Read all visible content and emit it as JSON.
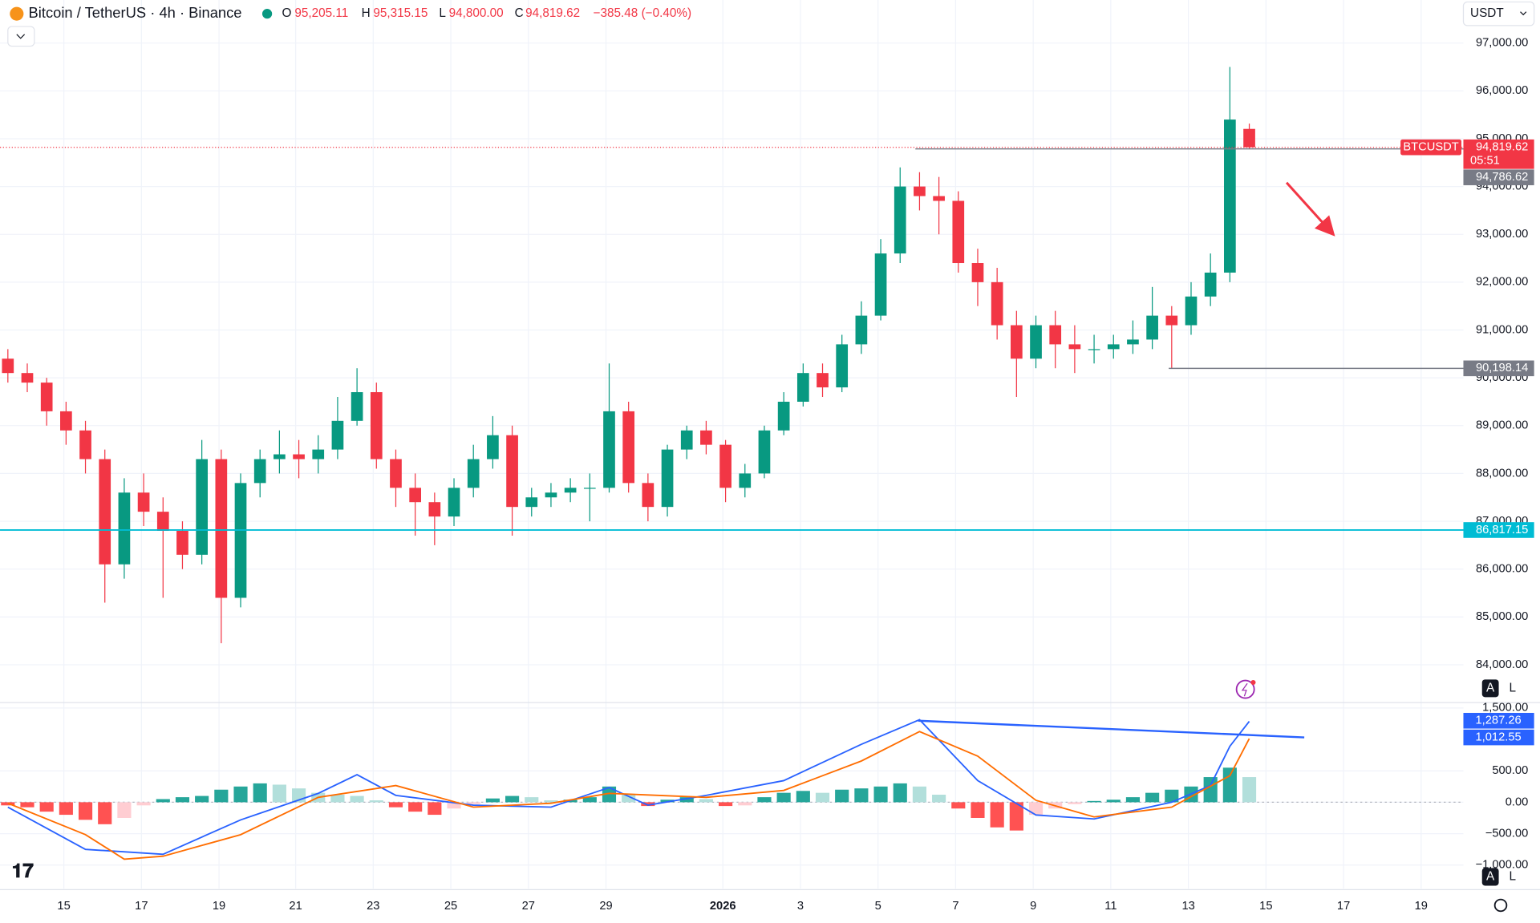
{
  "header": {
    "symbol": "Bitcoin / TetherUS · 4h · Binance",
    "o_key": "O",
    "o": "95,205.11",
    "h_key": "H",
    "h": "95,315.15",
    "l_key": "L",
    "l": "94,800.00",
    "c_key": "C",
    "c": "94,819.62",
    "change": "−385.48 (−0.40%)",
    "currency": "USDT",
    "scale_auto": "A",
    "scale_log": "L"
  },
  "chart_data": {
    "type": "candlestick",
    "up_color": "#089981",
    "down_color": "#f23645",
    "candles": [
      [
        90400,
        90600,
        89900,
        90100
      ],
      [
        90100,
        90300,
        89700,
        89900
      ],
      [
        89900,
        90000,
        89000,
        89300
      ],
      [
        89300,
        89500,
        88600,
        88900
      ],
      [
        88900,
        89100,
        88000,
        88300
      ],
      [
        88300,
        88500,
        85300,
        86100
      ],
      [
        86100,
        87900,
        85800,
        87600
      ],
      [
        87600,
        88000,
        86900,
        87200
      ],
      [
        87200,
        87500,
        85400,
        86800
      ],
      [
        86800,
        87000,
        86000,
        86300
      ],
      [
        86300,
        88700,
        86100,
        88300
      ],
      [
        88300,
        88500,
        84450,
        85400
      ],
      [
        85400,
        88000,
        85200,
        87800
      ],
      [
        87800,
        88500,
        87500,
        88300
      ],
      [
        88300,
        88900,
        88000,
        88400
      ],
      [
        88400,
        88700,
        87900,
        88300
      ],
      [
        88300,
        88800,
        88000,
        88500
      ],
      [
        88500,
        89600,
        88300,
        89100
      ],
      [
        89100,
        90200,
        89000,
        89700
      ],
      [
        89700,
        89900,
        88100,
        88300
      ],
      [
        88300,
        88500,
        87300,
        87700
      ],
      [
        87700,
        88000,
        86700,
        87400
      ],
      [
        87400,
        87600,
        86500,
        87100
      ],
      [
        87100,
        87900,
        86900,
        87700
      ],
      [
        87700,
        88600,
        87500,
        88300
      ],
      [
        88300,
        89200,
        88100,
        88800
      ],
      [
        88800,
        89000,
        86700,
        87300
      ],
      [
        87300,
        87700,
        87100,
        87500
      ],
      [
        87500,
        87800,
        87300,
        87600
      ],
      [
        87600,
        87900,
        87400,
        87700
      ],
      [
        87700,
        88000,
        87000,
        87700
      ],
      [
        87700,
        90300,
        87600,
        89300
      ],
      [
        89300,
        89500,
        87600,
        87800
      ],
      [
        87800,
        88000,
        87000,
        87300
      ],
      [
        87300,
        88600,
        87100,
        88500
      ],
      [
        88500,
        89000,
        88300,
        88900
      ],
      [
        88900,
        89100,
        88400,
        88600
      ],
      [
        88600,
        88700,
        87400,
        87700
      ],
      [
        87700,
        88200,
        87500,
        88000
      ],
      [
        88000,
        89000,
        87900,
        88900
      ],
      [
        88900,
        89700,
        88800,
        89500
      ],
      [
        89500,
        90300,
        89400,
        90100
      ],
      [
        90100,
        90300,
        89600,
        89800
      ],
      [
        89800,
        90900,
        89700,
        90700
      ],
      [
        90700,
        91600,
        90500,
        91300
      ],
      [
        91300,
        92900,
        91200,
        92600
      ],
      [
        92600,
        94400,
        92400,
        94000
      ],
      [
        94000,
        94300,
        93500,
        93800
      ],
      [
        93800,
        94200,
        93000,
        93700
      ],
      [
        93700,
        93900,
        92200,
        92400
      ],
      [
        92400,
        92700,
        91500,
        92000
      ],
      [
        92000,
        92300,
        90800,
        91100
      ],
      [
        91100,
        91400,
        89600,
        90400
      ],
      [
        90400,
        91300,
        90200,
        91100
      ],
      [
        91100,
        91400,
        90200,
        90700
      ],
      [
        90700,
        91100,
        90100,
        90600
      ],
      [
        90600,
        90900,
        90300,
        90600
      ],
      [
        90600,
        90900,
        90400,
        90700
      ],
      [
        90700,
        91200,
        90500,
        90800
      ],
      [
        90800,
        91900,
        90600,
        91300
      ],
      [
        91300,
        91500,
        90198.14,
        91100
      ],
      [
        91100,
        92000,
        90900,
        91700
      ],
      [
        91700,
        92600,
        91500,
        92200
      ],
      [
        92200,
        96500,
        92000,
        95400
      ],
      [
        95205.11,
        95315.15,
        94800,
        94819.62
      ]
    ],
    "ylim": [
      83220,
      97900
    ],
    "yticks": [
      {
        "value": 84000,
        "label": "84,000.00"
      },
      {
        "value": 85000,
        "label": "85,000.00"
      },
      {
        "value": 86000,
        "label": "86,000.00"
      },
      {
        "value": 87000,
        "label": "87,000.00"
      },
      {
        "value": 88000,
        "label": "88,000.00"
      },
      {
        "value": 89000,
        "label": "89,000.00"
      },
      {
        "value": 90000,
        "label": "90,000.00"
      },
      {
        "value": 91000,
        "label": "91,000.00"
      },
      {
        "value": 92000,
        "label": "92,000.00"
      },
      {
        "value": 93000,
        "label": "93,000.00"
      },
      {
        "value": 94000,
        "label": "94,000.00"
      },
      {
        "value": 95000,
        "label": "95,000.00"
      },
      {
        "value": 96000,
        "label": "96,000.00"
      },
      {
        "value": 97000,
        "label": "97,000.00"
      }
    ],
    "grid": true,
    "current": {
      "value": 94819.62,
      "label": "94,819.62",
      "symbol": "BTCUSDT",
      "countdown": "05:51",
      "color": "#f23645"
    },
    "levels": [
      {
        "value": 94786.62,
        "label": "94,786.62",
        "color": "#787b86"
      },
      {
        "value": 90198.14,
        "label": "90,198.14",
        "color": "#787b86"
      },
      {
        "value": 86817.15,
        "label": "86,817.15",
        "color": "#00bcd4"
      }
    ],
    "x_axis_labels": [
      "15",
      "17",
      "19",
      "21",
      "23",
      "25",
      "27",
      "29",
      "2026",
      "3",
      "5",
      "7",
      "9",
      "11",
      "13",
      "15",
      "17",
      "19"
    ],
    "macd": {
      "ylim": [
        -1375,
        1594
      ],
      "yticks": [
        {
          "value": 1500,
          "label": "1,500.00"
        },
        {
          "value": 500,
          "label": "500.00"
        },
        {
          "value": 0,
          "label": "0.00"
        },
        {
          "value": -500,
          "label": "−500.00"
        },
        {
          "value": -1000,
          "label": "−1,000.00"
        }
      ],
      "histogram": [
        -50,
        -80,
        -150,
        -200,
        -280,
        -350,
        -250,
        -50,
        50,
        80,
        100,
        200,
        250,
        300,
        280,
        220,
        150,
        120,
        100,
        30,
        -80,
        -150,
        -200,
        -100,
        -30,
        60,
        100,
        80,
        30,
        40,
        80,
        250,
        120,
        -60,
        40,
        80,
        50,
        -60,
        -50,
        80,
        150,
        180,
        150,
        200,
        220,
        250,
        300,
        250,
        120,
        -100,
        -250,
        -400,
        -450,
        -200,
        -100,
        -30,
        20,
        40,
        80,
        150,
        200,
        250,
        400,
        550,
        400
      ],
      "series": [
        {
          "color": "#2962ff",
          "x": [
            0,
            4,
            8,
            12,
            16,
            18,
            20,
            24,
            28,
            31,
            33,
            36,
            40,
            44,
            47,
            50,
            53,
            56,
            60,
            62,
            63,
            64
          ],
          "values": [
            -78,
            -750,
            -828,
            -281,
            141,
            438,
            109,
            -47,
            -78,
            234,
            -47,
            109,
            344,
            922,
            1313,
            344,
            -203,
            -266,
            0,
            266,
            891,
            1287.26
          ],
          "last_label": "1,287.26"
        },
        {
          "color": "#ff6d00",
          "x": [
            0,
            4,
            6,
            8,
            12,
            16,
            20,
            24,
            28,
            31,
            36,
            40,
            44,
            47,
            50,
            53,
            56,
            60,
            63,
            64
          ],
          "values": [
            -16,
            -516,
            -906,
            -859,
            -516,
            78,
            266,
            -78,
            -16,
            141,
            78,
            188,
            656,
            1125,
            734,
            31,
            -234,
            -78,
            422,
            1012.55
          ],
          "last_label": "1,012.55"
        }
      ]
    }
  }
}
